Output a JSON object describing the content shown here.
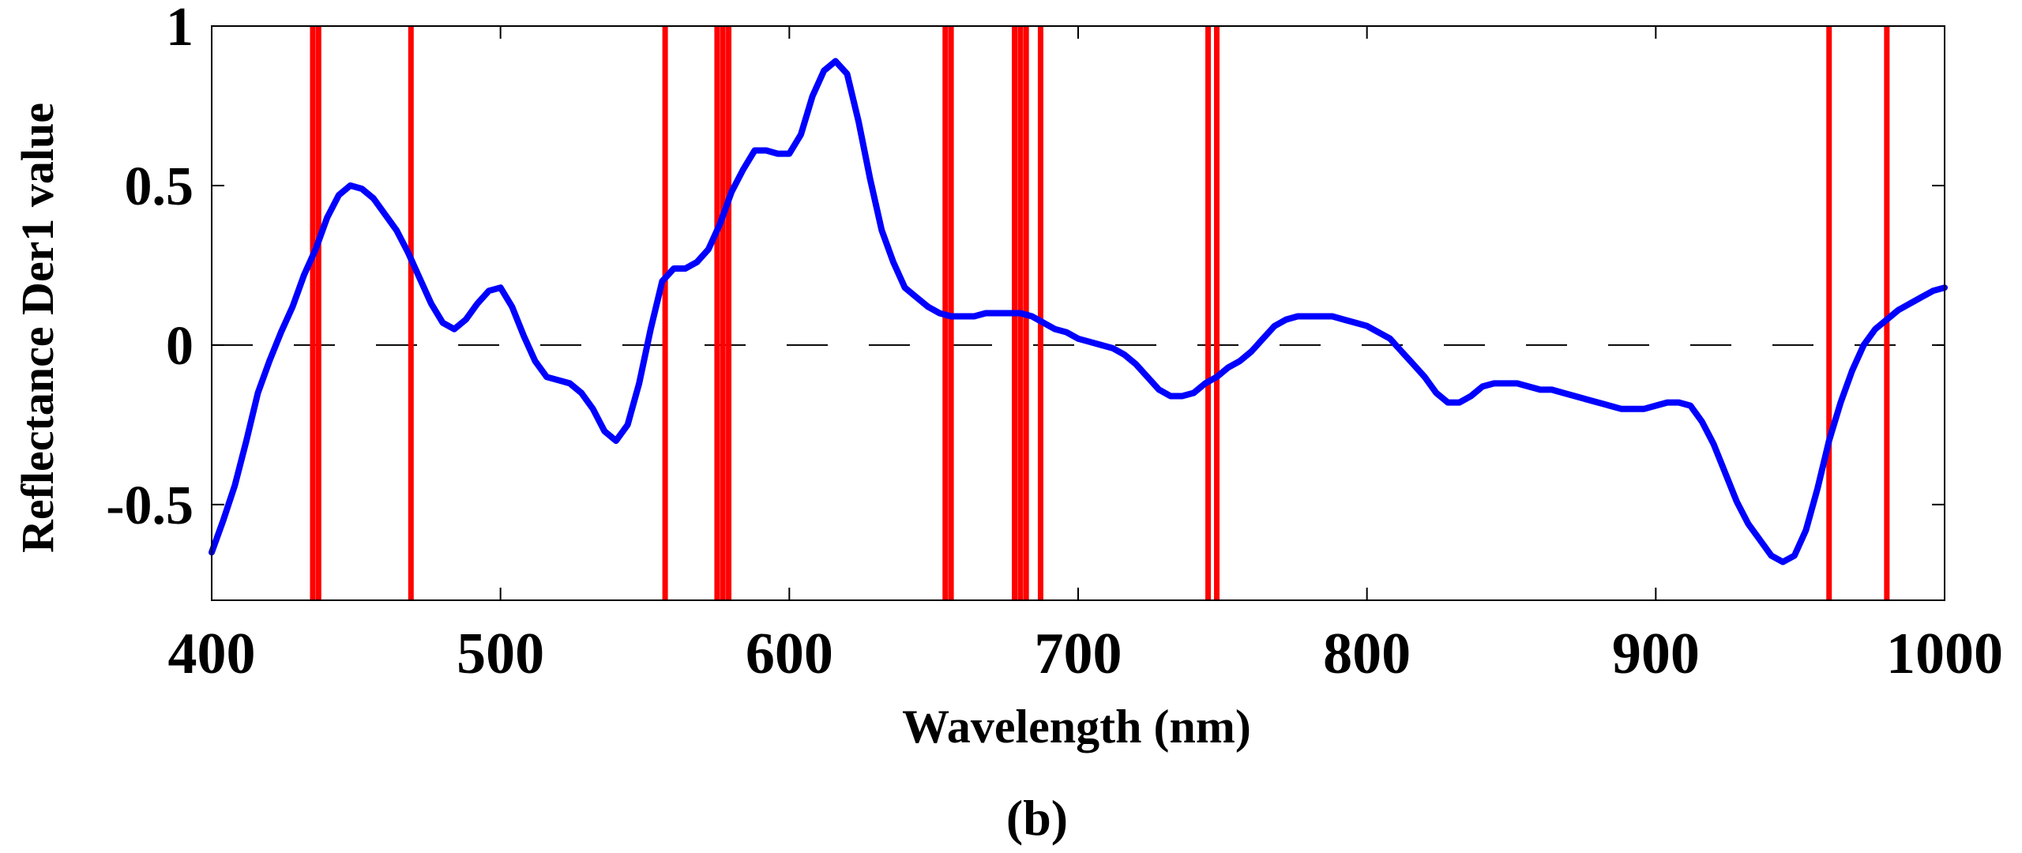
{
  "chart_data": {
    "type": "line",
    "panel_label": "(b)",
    "xlabel": "Wavelength (nm)",
    "ylabel": "Reflectance Der1 value",
    "xlim": [
      400,
      1000
    ],
    "ylim": [
      -0.8,
      1.0
    ],
    "x_ticks": [
      400,
      500,
      600,
      700,
      800,
      900,
      1000
    ],
    "x_tick_labels": [
      "400",
      "500",
      "600",
      "700",
      "800",
      "900",
      "1000"
    ],
    "y_ticks": [
      -0.5,
      0,
      0.5,
      1
    ],
    "y_tick_labels": [
      "-0.5",
      "0",
      "0.5",
      "1"
    ],
    "grid": false,
    "zero_reference_line": {
      "y": 0,
      "style": "dashed",
      "color": "#000000"
    },
    "series": [
      {
        "name": "Reflectance Der1",
        "color": "#0000ff",
        "points": [
          [
            400,
            -0.65
          ],
          [
            404,
            -0.55
          ],
          [
            408,
            -0.44
          ],
          [
            412,
            -0.3
          ],
          [
            416,
            -0.15
          ],
          [
            420,
            -0.05
          ],
          [
            424,
            0.04
          ],
          [
            428,
            0.12
          ],
          [
            432,
            0.22
          ],
          [
            436,
            0.3
          ],
          [
            440,
            0.4
          ],
          [
            444,
            0.47
          ],
          [
            448,
            0.5
          ],
          [
            452,
            0.49
          ],
          [
            456,
            0.46
          ],
          [
            460,
            0.41
          ],
          [
            464,
            0.36
          ],
          [
            468,
            0.29
          ],
          [
            472,
            0.21
          ],
          [
            476,
            0.13
          ],
          [
            480,
            0.07
          ],
          [
            484,
            0.05
          ],
          [
            488,
            0.08
          ],
          [
            492,
            0.13
          ],
          [
            496,
            0.17
          ],
          [
            500,
            0.18
          ],
          [
            504,
            0.12
          ],
          [
            508,
            0.03
          ],
          [
            512,
            -0.05
          ],
          [
            516,
            -0.1
          ],
          [
            520,
            -0.11
          ],
          [
            524,
            -0.12
          ],
          [
            528,
            -0.15
          ],
          [
            532,
            -0.2
          ],
          [
            536,
            -0.27
          ],
          [
            540,
            -0.3
          ],
          [
            544,
            -0.25
          ],
          [
            548,
            -0.12
          ],
          [
            552,
            0.05
          ],
          [
            556,
            0.2
          ],
          [
            560,
            0.24
          ],
          [
            564,
            0.24
          ],
          [
            568,
            0.26
          ],
          [
            572,
            0.3
          ],
          [
            576,
            0.38
          ],
          [
            580,
            0.48
          ],
          [
            584,
            0.55
          ],
          [
            588,
            0.61
          ],
          [
            592,
            0.61
          ],
          [
            596,
            0.6
          ],
          [
            600,
            0.6
          ],
          [
            604,
            0.66
          ],
          [
            608,
            0.78
          ],
          [
            612,
            0.86
          ],
          [
            616,
            0.89
          ],
          [
            620,
            0.85
          ],
          [
            624,
            0.7
          ],
          [
            628,
            0.52
          ],
          [
            632,
            0.36
          ],
          [
            636,
            0.26
          ],
          [
            640,
            0.18
          ],
          [
            644,
            0.15
          ],
          [
            648,
            0.12
          ],
          [
            652,
            0.1
          ],
          [
            656,
            0.09
          ],
          [
            660,
            0.09
          ],
          [
            664,
            0.09
          ],
          [
            668,
            0.1
          ],
          [
            672,
            0.1
          ],
          [
            676,
            0.1
          ],
          [
            680,
            0.1
          ],
          [
            684,
            0.09
          ],
          [
            688,
            0.07
          ],
          [
            692,
            0.05
          ],
          [
            696,
            0.04
          ],
          [
            700,
            0.02
          ],
          [
            704,
            0.01
          ],
          [
            708,
            0.0
          ],
          [
            712,
            -0.01
          ],
          [
            716,
            -0.03
          ],
          [
            720,
            -0.06
          ],
          [
            724,
            -0.1
          ],
          [
            728,
            -0.14
          ],
          [
            732,
            -0.16
          ],
          [
            736,
            -0.16
          ],
          [
            740,
            -0.15
          ],
          [
            744,
            -0.12
          ],
          [
            748,
            -0.1
          ],
          [
            752,
            -0.07
          ],
          [
            756,
            -0.05
          ],
          [
            760,
            -0.02
          ],
          [
            764,
            0.02
          ],
          [
            768,
            0.06
          ],
          [
            772,
            0.08
          ],
          [
            776,
            0.09
          ],
          [
            780,
            0.09
          ],
          [
            784,
            0.09
          ],
          [
            788,
            0.09
          ],
          [
            792,
            0.08
          ],
          [
            796,
            0.07
          ],
          [
            800,
            0.06
          ],
          [
            804,
            0.04
          ],
          [
            808,
            0.02
          ],
          [
            812,
            -0.02
          ],
          [
            816,
            -0.06
          ],
          [
            820,
            -0.1
          ],
          [
            824,
            -0.15
          ],
          [
            828,
            -0.18
          ],
          [
            832,
            -0.18
          ],
          [
            836,
            -0.16
          ],
          [
            840,
            -0.13
          ],
          [
            844,
            -0.12
          ],
          [
            848,
            -0.12
          ],
          [
            852,
            -0.12
          ],
          [
            856,
            -0.13
          ],
          [
            860,
            -0.14
          ],
          [
            864,
            -0.14
          ],
          [
            868,
            -0.15
          ],
          [
            872,
            -0.16
          ],
          [
            876,
            -0.17
          ],
          [
            880,
            -0.18
          ],
          [
            884,
            -0.19
          ],
          [
            888,
            -0.2
          ],
          [
            892,
            -0.2
          ],
          [
            896,
            -0.2
          ],
          [
            900,
            -0.19
          ],
          [
            904,
            -0.18
          ],
          [
            908,
            -0.18
          ],
          [
            912,
            -0.19
          ],
          [
            916,
            -0.24
          ],
          [
            920,
            -0.31
          ],
          [
            924,
            -0.4
          ],
          [
            928,
            -0.49
          ],
          [
            932,
            -0.56
          ],
          [
            936,
            -0.61
          ],
          [
            940,
            -0.66
          ],
          [
            944,
            -0.68
          ],
          [
            948,
            -0.66
          ],
          [
            952,
            -0.58
          ],
          [
            956,
            -0.45
          ],
          [
            960,
            -0.3
          ],
          [
            964,
            -0.18
          ],
          [
            968,
            -0.08
          ],
          [
            972,
            0.0
          ],
          [
            976,
            0.05
          ],
          [
            980,
            0.08
          ],
          [
            984,
            0.11
          ],
          [
            988,
            0.13
          ],
          [
            992,
            0.15
          ],
          [
            996,
            0.17
          ],
          [
            1000,
            0.18
          ]
        ]
      }
    ],
    "selected_wavelengths": {
      "color": "#ff0000",
      "values": [
        435,
        437,
        469,
        557,
        575,
        577,
        579,
        654,
        656,
        678,
        680,
        682,
        687,
        745,
        748,
        960,
        980
      ]
    }
  }
}
